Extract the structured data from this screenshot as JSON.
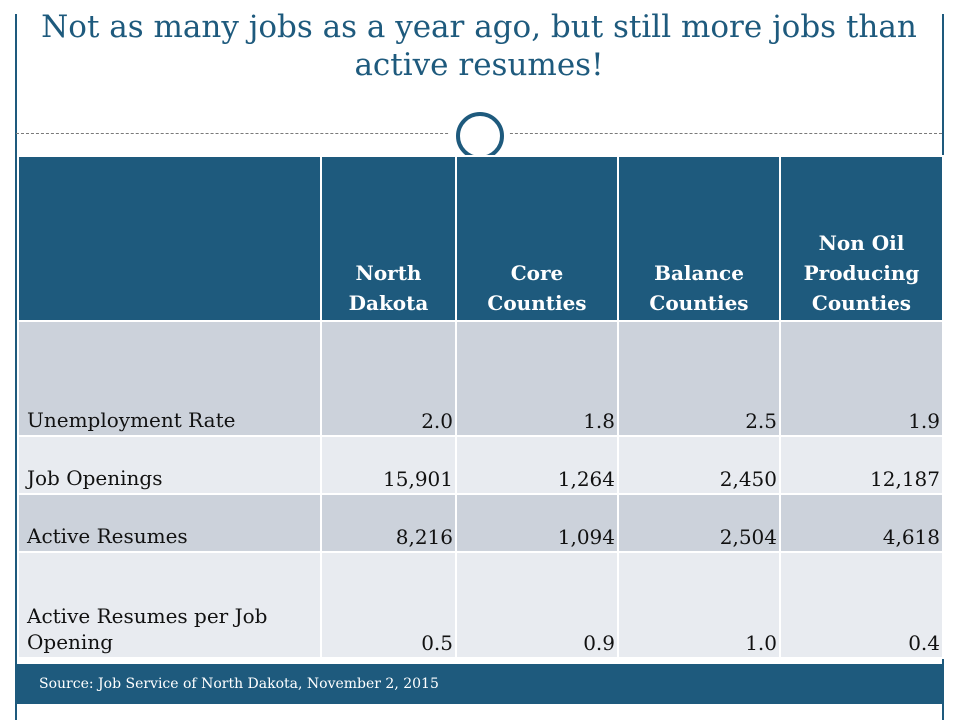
{
  "title": "Not as many jobs as a year ago, but still more jobs than active resumes!",
  "table": {
    "headers": [
      "",
      "North Dakota",
      "Core Counties",
      "Balance Counties",
      "Non Oil Producing Counties"
    ],
    "rows": [
      {
        "label": "Unemployment Rate",
        "values": [
          "2.0",
          "1.8",
          "2.5",
          "1.9"
        ]
      },
      {
        "label": "Job Openings",
        "values": [
          "15,901",
          "1,264",
          "2,450",
          "12,187"
        ]
      },
      {
        "label": "Active Resumes",
        "values": [
          "8,216",
          "1,094",
          "2,504",
          "4,618"
        ]
      },
      {
        "label": "Active Resumes per Job Opening",
        "values": [
          "0.5",
          "0.9",
          "1.0",
          "0.4"
        ]
      }
    ]
  },
  "footer": {
    "source": "Source:  Job Service of North Dakota, November 2, 2015"
  },
  "colors": {
    "accent": "#1e5a7d",
    "row_dark": "#ccd2db",
    "row_light": "#e8ebf0"
  }
}
